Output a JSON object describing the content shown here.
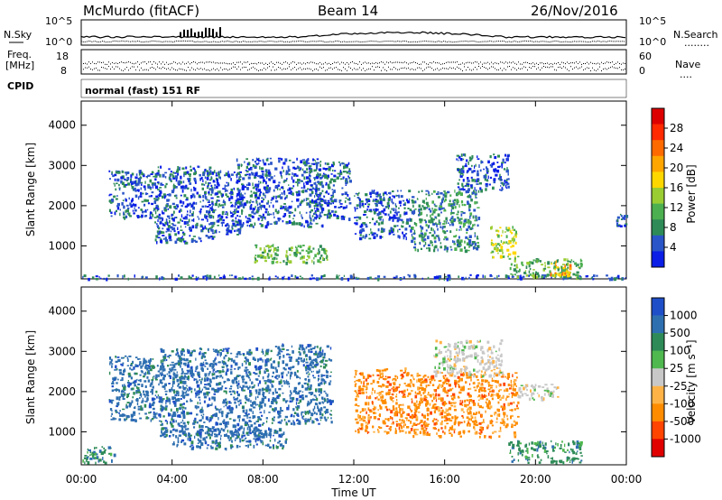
{
  "header": {
    "station": "McMurdo (fitACF)",
    "beam": "Beam 14",
    "date": "26/Nov/2016"
  },
  "top_panel": {
    "left_label": "N.Sky",
    "right_label": "N.Search",
    "right_label_dots": "........",
    "left_ticks": [
      "10^5",
      "10^0"
    ],
    "right_ticks": [
      "10^5",
      "10^0"
    ]
  },
  "freq_panel": {
    "left_label_line1": "Freq.",
    "left_label_line2": "[MHz]",
    "left_ticks": [
      "18",
      "8"
    ],
    "right_ticks": [
      "60",
      "0"
    ],
    "right_label": "Nave",
    "right_label_dots": "....",
    "cpid_label": "CPID",
    "mode_text": "normal (fast) 151 RF"
  },
  "x_axis": {
    "label": "Time UT",
    "ticks": [
      "00:00",
      "04:00",
      "08:00",
      "12:00",
      "16:00",
      "20:00",
      "00:00"
    ]
  },
  "chart_data": [
    {
      "type": "heatmap",
      "title": "",
      "xlabel": "Time UT",
      "ylabel": "Slant Range [km]",
      "xlim": [
        0,
        24
      ],
      "ylim": [
        180,
        4600
      ],
      "y_ticks": [
        1000,
        2000,
        3000,
        4000
      ],
      "colorbar": {
        "label": "Power [dB]",
        "ticks": [
          "4",
          "8",
          "12",
          "16",
          "20",
          "24",
          "28"
        ],
        "colors": [
          "#0a1ee6",
          "#2a55c8",
          "#2e8b57",
          "#4caf50",
          "#9acd32",
          "#ffd700",
          "#ffa500",
          "#ff6a00",
          "#ff2a00",
          "#dd0000"
        ]
      },
      "echo_regions_hours_km": [
        {
          "t0": 0.0,
          "t1": 24.0,
          "r0": 200,
          "r1": 300,
          "level": 1
        },
        {
          "t0": 1.2,
          "t1": 3.4,
          "r0": 1700,
          "r1": 2900,
          "level": 1
        },
        {
          "t0": 3.2,
          "t1": 5.8,
          "r0": 1100,
          "r1": 3000,
          "level": 1
        },
        {
          "t0": 5.6,
          "t1": 7.0,
          "r0": 1300,
          "r1": 2900,
          "level": 1
        },
        {
          "t0": 6.8,
          "t1": 10.6,
          "r0": 1500,
          "r1": 3200,
          "level": 1
        },
        {
          "t0": 7.5,
          "t1": 10.8,
          "r0": 600,
          "r1": 1050,
          "level": 3
        },
        {
          "t0": 10.0,
          "t1": 11.8,
          "r0": 1700,
          "r1": 3100,
          "level": 1
        },
        {
          "t0": 12.0,
          "t1": 14.5,
          "r0": 1200,
          "r1": 2400,
          "level": 1
        },
        {
          "t0": 14.5,
          "t1": 17.5,
          "r0": 900,
          "r1": 2400,
          "level": 2
        },
        {
          "t0": 16.5,
          "t1": 18.8,
          "r0": 2400,
          "r1": 3300,
          "level": 1
        },
        {
          "t0": 18.0,
          "t1": 19.2,
          "r0": 700,
          "r1": 1500,
          "level": 4
        },
        {
          "t0": 18.8,
          "t1": 22.0,
          "r0": 220,
          "r1": 700,
          "level": 3
        },
        {
          "t0": 20.5,
          "t1": 21.5,
          "r0": 300,
          "r1": 650,
          "level": 6
        },
        {
          "t0": 23.5,
          "t1": 24.0,
          "r0": 1500,
          "r1": 1800,
          "level": 1
        }
      ]
    },
    {
      "type": "heatmap",
      "title": "",
      "xlabel": "Time UT",
      "ylabel": "Slant Range [km]",
      "xlim": [
        0,
        24
      ],
      "ylim": [
        180,
        4600
      ],
      "y_ticks": [
        1000,
        2000,
        3000,
        4000
      ],
      "colorbar": {
        "label": "Velocity [m s⁻¹]",
        "ticks": [
          "1000",
          "500",
          "100",
          "25",
          "-25",
          "-100",
          "-500",
          "-1000"
        ],
        "colors": [
          "#1f4fc8",
          "#2e6fb0",
          "#2e8b57",
          "#4fb84f",
          "#c8c8c8",
          "#ffb347",
          "#ff8c00",
          "#ff4500",
          "#e00000"
        ]
      },
      "echo_regions_hours_km": [
        {
          "t0": 0.0,
          "t1": 1.5,
          "r0": 250,
          "r1": 650,
          "velocity": 100
        },
        {
          "t0": 1.2,
          "t1": 3.6,
          "r0": 1300,
          "r1": 2900,
          "velocity": 500
        },
        {
          "t0": 3.4,
          "t1": 8.5,
          "r0": 900,
          "r1": 3100,
          "velocity": 500
        },
        {
          "t0": 4.0,
          "t1": 9.0,
          "r0": 600,
          "r1": 1100,
          "velocity": 500
        },
        {
          "t0": 8.5,
          "t1": 11.0,
          "r0": 1200,
          "r1": 3200,
          "velocity": 500
        },
        {
          "t0": 12.0,
          "t1": 14.5,
          "r0": 1000,
          "r1": 2600,
          "velocity": -500
        },
        {
          "t0": 14.5,
          "t1": 19.2,
          "r0": 900,
          "r1": 2500,
          "velocity": -500
        },
        {
          "t0": 15.5,
          "t1": 18.5,
          "r0": 2400,
          "r1": 3300,
          "velocity": -25
        },
        {
          "t0": 18.8,
          "t1": 22.0,
          "r0": 250,
          "r1": 800,
          "velocity": 100
        },
        {
          "t0": 19.2,
          "t1": 21.0,
          "r0": 1800,
          "r1": 2200,
          "velocity": -25
        }
      ]
    }
  ]
}
